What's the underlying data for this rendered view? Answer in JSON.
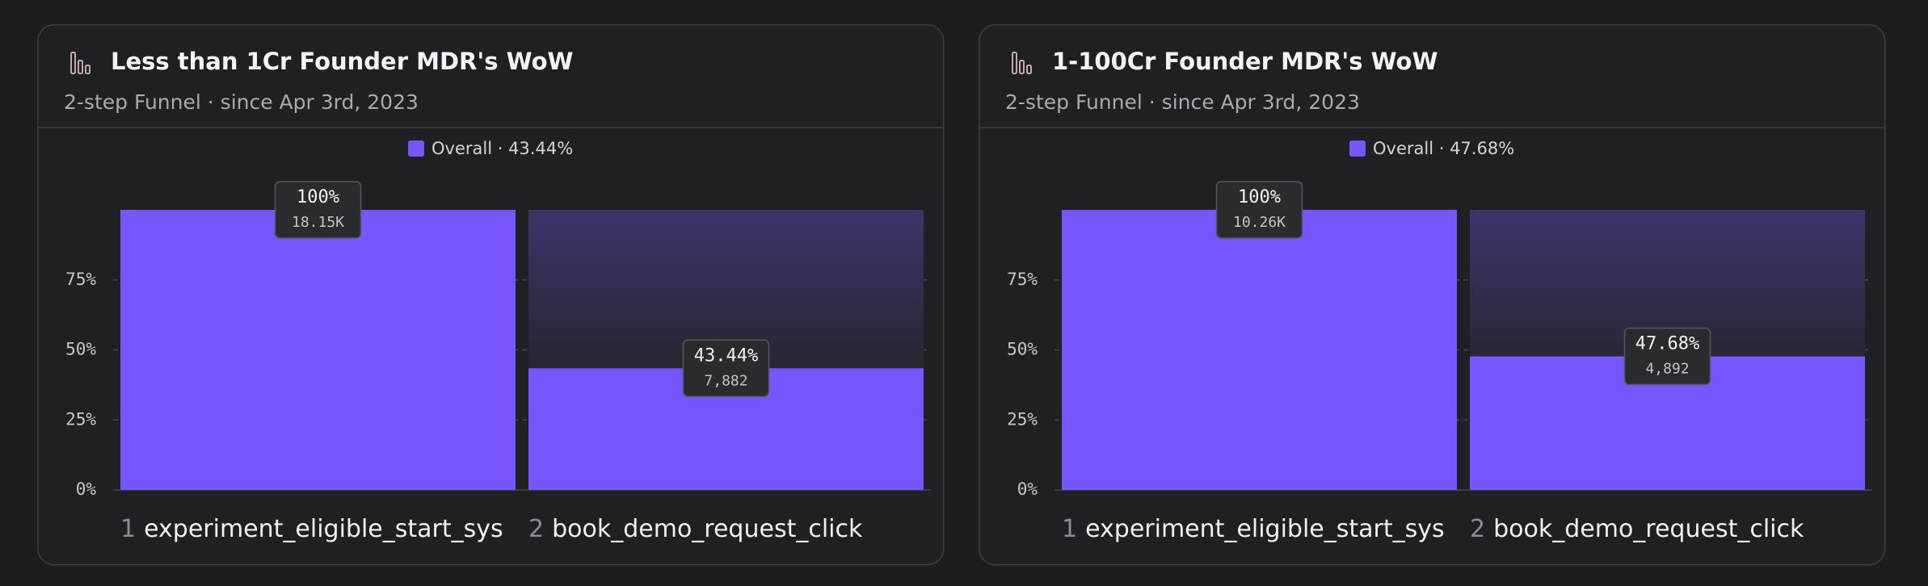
{
  "chart_data": [
    {
      "type": "bar",
      "title": "Less than 1Cr Founder MDR's WoW",
      "subtitle": "2-step Funnel · since Apr 3rd, 2023",
      "step_numbers": [
        1,
        2
      ],
      "categories": [
        "experiment_eligible_start_sys",
        "book_demo_request_click"
      ],
      "series": [
        {
          "name": "Overall · 43.44%",
          "color": "#7856ff",
          "values": [
            100,
            43.44
          ],
          "value_labels": [
            "100%",
            "43.44%"
          ],
          "counts": [
            "18.15K",
            "7,882"
          ]
        }
      ],
      "ylim": [
        0,
        100
      ],
      "yticks": [
        {
          "value": 0,
          "label": "0%"
        },
        {
          "value": 25,
          "label": "25%"
        },
        {
          "value": 50,
          "label": "50%"
        },
        {
          "value": 75,
          "label": "75%"
        }
      ],
      "grid": true
    },
    {
      "type": "bar",
      "title": "1-100Cr Founder MDR's WoW",
      "subtitle": "2-step Funnel · since Apr 3rd, 2023",
      "step_numbers": [
        1,
        2
      ],
      "categories": [
        "experiment_eligible_start_sys",
        "book_demo_request_click"
      ],
      "series": [
        {
          "name": "Overall · 47.68%",
          "color": "#7856ff",
          "values": [
            100,
            47.68
          ],
          "value_labels": [
            "100%",
            "47.68%"
          ],
          "counts": [
            "10.26K",
            "4,892"
          ]
        }
      ],
      "ylim": [
        0,
        100
      ],
      "yticks": [
        {
          "value": 0,
          "label": "0%"
        },
        {
          "value": 25,
          "label": "25%"
        },
        {
          "value": 50,
          "label": "50%"
        },
        {
          "value": 75,
          "label": "75%"
        }
      ],
      "grid": true
    }
  ]
}
